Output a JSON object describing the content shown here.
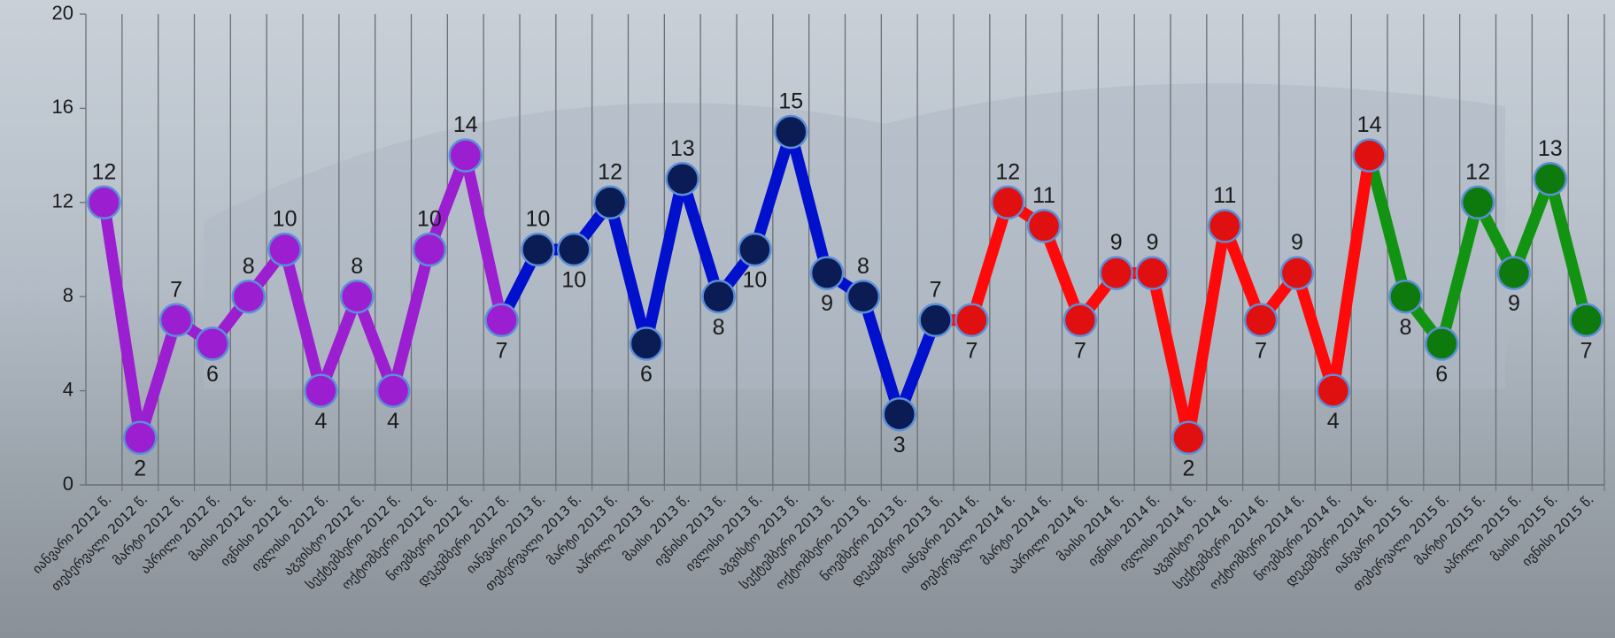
{
  "chart_data": {
    "type": "line",
    "categories": [
      "იანვარი 2012 წ.",
      "თებერვალი 2012 წ.",
      "მარტი 2012 წ.",
      "აპრილი 2012 წ.",
      "მაისი 2012 წ.",
      "ივნისი 2012 წ.",
      "ივლისი 2012 წ.",
      "აგვისტო 2012 წ.",
      "სექტემბერი 2012 წ.",
      "ოქტომბერი 2012 წ.",
      "ნოემბერი 2012 წ.",
      "დეკემბერი 2012 წ.",
      "იანვარი 2013 წ.",
      "თებერვალი 2013 წ.",
      "მარტი 2013 წ.",
      "აპრილი 2013 წ.",
      "მაისი 2013 წ.",
      "ივნისი 2013 წ.",
      "ივლისი 2013 წ.",
      "აგვისტო 2013 წ.",
      "სექტემბერი 2013 წ.",
      "ოქტომბერი 2013 წ.",
      "ნოემბერი 2013 წ.",
      "დეკემბერი 2013 წ.",
      "იანვარი 2014 წ.",
      "თებერვალი 2014 წ.",
      "მარტი 2014 წ.",
      "აპრილი 2014 წ.",
      "მაისი 2014 წ.",
      "ივნისი 2014 წ.",
      "ივლისი 2014 წ.",
      "აგვისტო 2014 წ.",
      "სექტემბერი 2014 წ.",
      "ოქტომბერი 2014 წ.",
      "ნოემბერი 2014 წ.",
      "დეკემბერი 2014 წ.",
      "იანვარი 2015 წ.",
      "თებერვალი 2015 წ.",
      "მარტი 2015 წ.",
      "აპრილი 2015 წ.",
      "მაისი 2015 წ.",
      "ივნისი 2015 წ."
    ],
    "series": [
      {
        "color": "#9b1fd0",
        "marker_color": "#9b1fd0",
        "values": [
          12,
          2,
          7,
          6,
          8,
          10,
          4,
          8,
          4,
          10,
          14,
          7,
          null,
          null,
          null,
          null,
          null,
          null,
          null,
          null,
          null,
          null,
          null,
          null,
          null,
          null,
          null,
          null,
          null,
          null,
          null,
          null,
          null,
          null,
          null,
          null,
          null,
          null,
          null,
          null,
          null,
          null
        ]
      },
      {
        "color": "#0010cc",
        "marker_color": "#0b1c55",
        "values": [
          null,
          null,
          null,
          null,
          null,
          null,
          null,
          null,
          null,
          null,
          null,
          null,
          10,
          10,
          12,
          6,
          13,
          8,
          10,
          15,
          9,
          8,
          3,
          7,
          null,
          null,
          null,
          null,
          null,
          null,
          null,
          null,
          null,
          null,
          null,
          null,
          null,
          null,
          null,
          null,
          null,
          null
        ]
      },
      {
        "color": "#ff0a0a",
        "marker_color": "#e01010",
        "values": [
          null,
          null,
          null,
          null,
          null,
          null,
          null,
          null,
          null,
          null,
          null,
          null,
          null,
          null,
          null,
          null,
          null,
          null,
          null,
          null,
          null,
          null,
          null,
          null,
          7,
          12,
          11,
          7,
          9,
          9,
          2,
          11,
          7,
          9,
          4,
          14,
          null,
          null,
          null,
          null,
          null,
          null
        ]
      },
      {
        "color": "#129412",
        "marker_color": "#0e7a0e",
        "values": [
          null,
          null,
          null,
          null,
          null,
          null,
          null,
          null,
          null,
          null,
          null,
          null,
          null,
          null,
          null,
          null,
          null,
          null,
          null,
          null,
          null,
          null,
          null,
          null,
          null,
          null,
          null,
          null,
          null,
          null,
          null,
          null,
          null,
          null,
          null,
          null,
          8,
          6,
          12,
          9,
          13,
          7
        ]
      }
    ],
    "ylim": [
      0,
      20
    ],
    "yticks": [
      0,
      4,
      8,
      12,
      16,
      20
    ],
    "grid": true
  }
}
